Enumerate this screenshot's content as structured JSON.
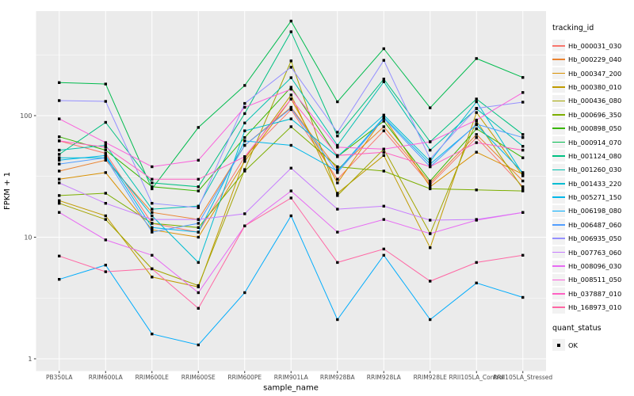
{
  "figure": {
    "background": "#FFFFFF",
    "panel_background": "#EBEBEB",
    "grid_color": "#FFFFFF",
    "tick_color": "#333333",
    "axis_text_color": "#4D4D4D",
    "axis_title_color": "#000000",
    "point_color": "#000000"
  },
  "chart_data": {
    "type": "line",
    "title": "",
    "xlabel": "sample_name",
    "ylabel": "FPKM + 1",
    "y_scale": "log10",
    "y_ticks": [
      1,
      10,
      100
    ],
    "y_minor_ticks": [
      3.1623,
      31.623,
      316.23
    ],
    "ylim": [
      1.1,
      650
    ],
    "grid": true,
    "legend_position": "right",
    "x_categories": [
      "PB350LA",
      "RRIM600LA",
      "RRIM600LE",
      "RRIM600SE",
      "RRIM600PE",
      "RRIM901LA",
      "RRIM928BA",
      "RRIM928LA",
      "RRIM928LE",
      "RRII105LA_Control",
      "RRII105LA_Stressed"
    ],
    "point_marker": "filled-square",
    "series": [
      {
        "name": "Hb_000031_030",
        "color": "#F8766D",
        "values": [
          62,
          49,
          13,
          11,
          46,
          112,
          30,
          75,
          27,
          66,
          26
        ]
      },
      {
        "name": "Hb_000229_040",
        "color": "#EA8331",
        "values": [
          35,
          43,
          16,
          14,
          57,
          117,
          36,
          81,
          28,
          70,
          29
        ]
      },
      {
        "name": "Hb_000347_200",
        "color": "#D89000",
        "values": [
          30,
          34,
          11.5,
          10,
          42,
          137,
          28,
          97,
          26,
          50,
          33
        ]
      },
      {
        "name": "Hb_000380_010",
        "color": "#C09B00",
        "values": [
          20,
          15,
          4.7,
          3.9,
          44,
          148,
          23,
          47,
          8.2,
          106,
          32
        ]
      },
      {
        "name": "Hb_000436_080",
        "color": "#A3A500",
        "values": [
          19,
          14,
          5.5,
          4.0,
          36,
          282,
          22,
          53,
          10.7,
          90,
          25
        ]
      },
      {
        "name": "Hb_000696_350",
        "color": "#7CAE00",
        "values": [
          22,
          23,
          13,
          12,
          35,
          81,
          38,
          35,
          25,
          24.5,
          24
        ]
      },
      {
        "name": "Hb_000898_050",
        "color": "#39B600",
        "values": [
          67,
          52,
          26,
          24,
          66,
          171,
          46,
          90,
          29,
          78,
          45
        ]
      },
      {
        "name": "Hb_000914_070",
        "color": "#00BB4E",
        "values": [
          187,
          182,
          25,
          80,
          177,
          600,
          130,
          355,
          116,
          295,
          206
        ]
      },
      {
        "name": "Hb_001124_080",
        "color": "#00C081",
        "values": [
          48,
          88,
          28,
          26,
          104,
          490,
          68,
          200,
          61,
          137,
          70
        ]
      },
      {
        "name": "Hb_001260_030",
        "color": "#00C0AF",
        "values": [
          52,
          57,
          17,
          18,
          87,
          205,
          57,
          190,
          52,
          114,
          56
        ]
      },
      {
        "name": "Hb_001433_220",
        "color": "#00BDD2",
        "values": [
          45,
          45,
          15,
          6.2,
          75,
          94,
          46,
          101,
          42,
          130,
          33
        ]
      },
      {
        "name": "Hb_005271_150",
        "color": "#00B7E9",
        "values": [
          43,
          47,
          12,
          11,
          62,
          57,
          35,
          97,
          40,
          84,
          34
        ]
      },
      {
        "name": "Hb_006198_080",
        "color": "#00ACFC",
        "values": [
          4.5,
          5.9,
          1.6,
          1.3,
          3.5,
          15,
          2.1,
          7.1,
          2.1,
          4.2,
          3.2
        ]
      },
      {
        "name": "Hb_006487_060",
        "color": "#529EFF",
        "values": [
          40,
          45,
          11,
          13,
          57,
          115,
          34,
          95,
          38,
          85,
          66
        ]
      },
      {
        "name": "Hb_006935_050",
        "color": "#9590FF",
        "values": [
          133,
          131,
          19,
          17.5,
          126,
          250,
          73,
          285,
          44,
          115,
          129
        ]
      },
      {
        "name": "Hb_007763_060",
        "color": "#C77CFF",
        "values": [
          28,
          19,
          14,
          14,
          15.6,
          37,
          17,
          18,
          13.8,
          14,
          16
        ]
      },
      {
        "name": "Hb_008096_030",
        "color": "#E76BF3",
        "values": [
          16,
          9.5,
          7.1,
          3.5,
          12.4,
          24,
          11,
          14,
          10.7,
          13.8,
          16
        ]
      },
      {
        "name": "Hb_008511_050",
        "color": "#FA62DB",
        "values": [
          94,
          60,
          38,
          43,
          117,
          165,
          55,
          53,
          61,
          92,
          155
        ]
      },
      {
        "name": "Hb_037887_010",
        "color": "#FF61C3",
        "values": [
          62,
          55,
          30,
          30,
          46,
          137,
          47,
          50,
          38,
          60,
          52
        ]
      },
      {
        "name": "Hb_168973_010",
        "color": "#FF67A4",
        "values": [
          7.0,
          5.2,
          5.5,
          2.6,
          12.4,
          21,
          6.2,
          8.0,
          4.35,
          6.2,
          7.1
        ]
      }
    ],
    "legend": {
      "title": "tracking_id"
    },
    "legend2": {
      "title": "quant_status",
      "items": [
        {
          "label": "OK",
          "marker": "black-square"
        }
      ]
    }
  }
}
